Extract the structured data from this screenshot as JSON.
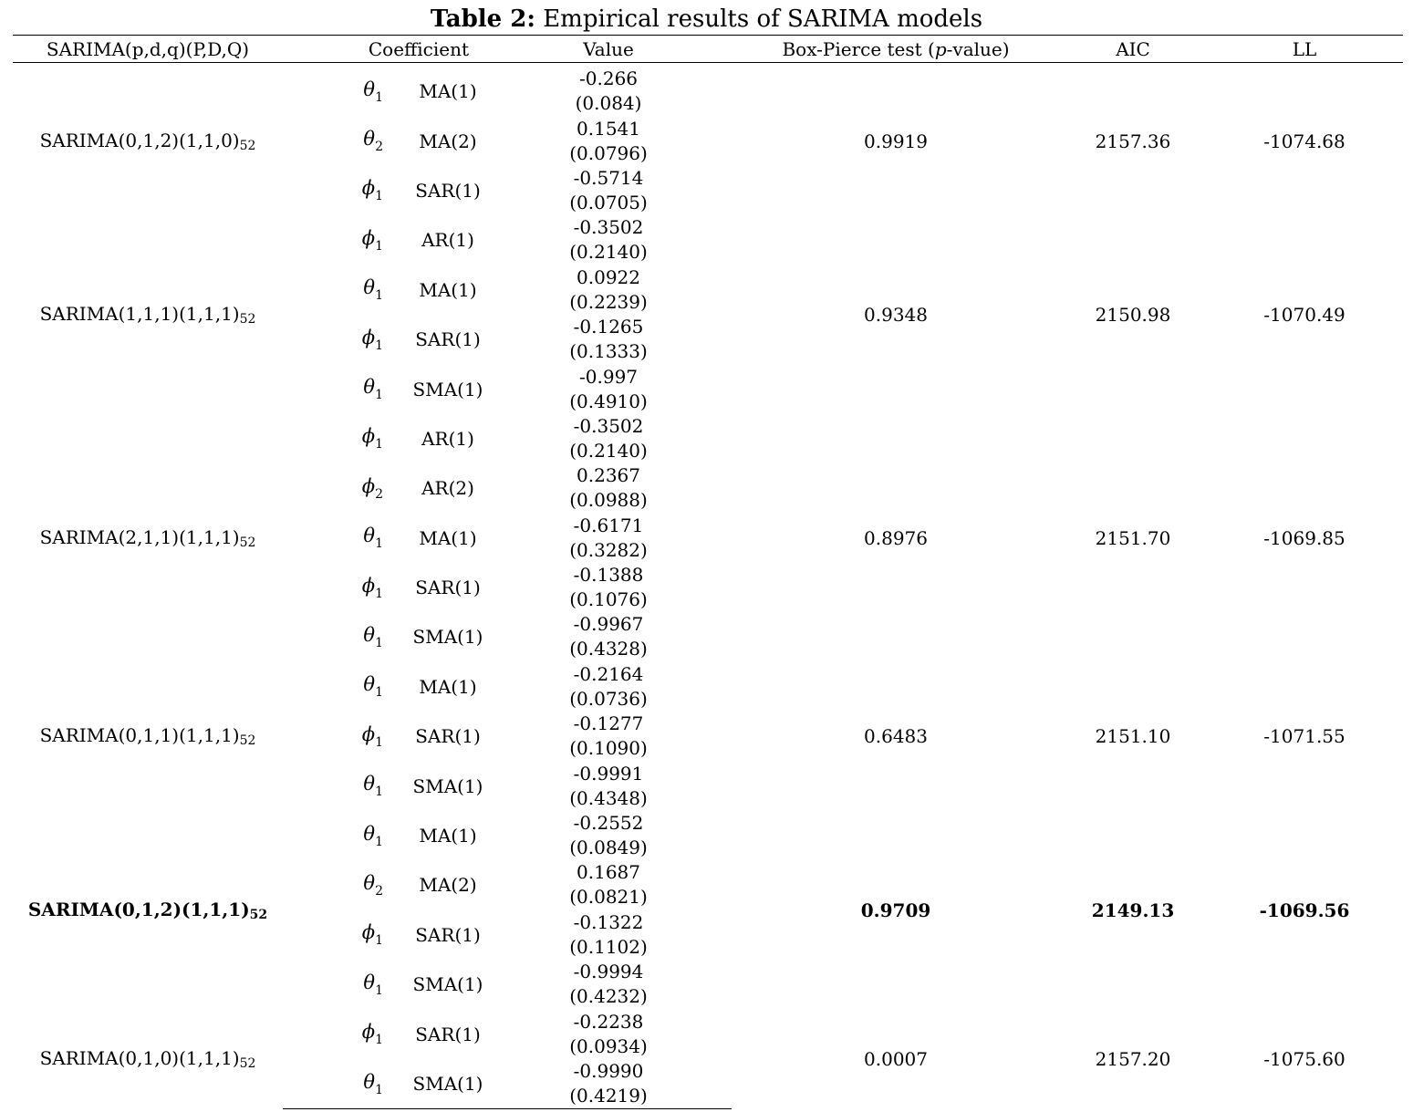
{
  "title": {
    "label": "Table 2:",
    "text": "Empirical results of SARIMA models"
  },
  "headers": {
    "model": "SARIMA(p,d,q)(P,D,Q)",
    "coefficient": "Coefficient",
    "value": "Value",
    "box_pre": "Box-Pierce test (",
    "box_p": "p",
    "box_post": "-value)",
    "aic": "AIC",
    "ll": "LL"
  },
  "models": [
    {
      "name": "SARIMA(0,1,2)(1,1,0)",
      "season": "52",
      "box_pierce": "0.9919",
      "aic": "2157.36",
      "ll": "-1074.68",
      "bold": false,
      "coefficients": [
        {
          "symbol": "θ",
          "index": "1",
          "term": "MA(1)",
          "value": "-0.266",
          "se": "(0.084)"
        },
        {
          "symbol": "θ",
          "index": "2",
          "term": "MA(2)",
          "value": "0.1541",
          "se": "(0.0796)"
        },
        {
          "symbol": "ϕ",
          "index": "1",
          "term": "SAR(1)",
          "value": "-0.5714",
          "se": "(0.0705)"
        }
      ]
    },
    {
      "name": "SARIMA(1,1,1)(1,1,1)",
      "season": "52",
      "box_pierce": "0.9348",
      "aic": "2150.98",
      "ll": "-1070.49",
      "bold": false,
      "coefficients": [
        {
          "symbol": "ϕ",
          "index": "1",
          "term": "AR(1)",
          "value": "-0.3502",
          "se": "(0.2140)"
        },
        {
          "symbol": "θ",
          "index": "1",
          "term": "MA(1)",
          "value": "0.0922",
          "se": "(0.2239)"
        },
        {
          "symbol": "ϕ",
          "index": "1",
          "term": "SAR(1)",
          "value": "-0.1265",
          "se": "(0.1333)"
        },
        {
          "symbol": "θ",
          "index": "1",
          "term": "SMA(1)",
          "value": "-0.997",
          "se": "(0.4910)"
        }
      ]
    },
    {
      "name": "SARIMA(2,1,1)(1,1,1)",
      "season": "52",
      "box_pierce": "0.8976",
      "aic": "2151.70",
      "ll": "-1069.85",
      "bold": false,
      "coefficients": [
        {
          "symbol": "ϕ",
          "index": "1",
          "term": "AR(1)",
          "value": "-0.3502",
          "se": "(0.2140)"
        },
        {
          "symbol": "ϕ",
          "index": "2",
          "term": "AR(2)",
          "value": "0.2367",
          "se": "(0.0988)"
        },
        {
          "symbol": "θ",
          "index": "1",
          "term": "MA(1)",
          "value": "-0.6171",
          "se": "(0.3282)"
        },
        {
          "symbol": "ϕ",
          "index": "1",
          "term": "SAR(1)",
          "value": "-0.1388",
          "se": "(0.1076)"
        },
        {
          "symbol": "θ",
          "index": "1",
          "term": "SMA(1)",
          "value": "-0.9967",
          "se": "(0.4328)"
        }
      ]
    },
    {
      "name": "SARIMA(0,1,1)(1,1,1)",
      "season": "52",
      "box_pierce": "0.6483",
      "aic": "2151.10",
      "ll": "-1071.55",
      "bold": false,
      "coefficients": [
        {
          "symbol": "θ",
          "index": "1",
          "term": "MA(1)",
          "value": "-0.2164",
          "se": "(0.0736)"
        },
        {
          "symbol": "ϕ",
          "index": "1",
          "term": "SAR(1)",
          "value": "-0.1277",
          "se": "(0.1090)"
        },
        {
          "symbol": "θ",
          "index": "1",
          "term": "SMA(1)",
          "value": "-0.9991",
          "se": "(0.4348)"
        }
      ]
    },
    {
      "name": "SARIMA(0,1,2)(1,1,1)",
      "season": "52",
      "box_pierce": "0.9709",
      "aic": "2149.13",
      "ll": "-1069.56",
      "bold": true,
      "coefficients": [
        {
          "symbol": "θ",
          "index": "1",
          "term": "MA(1)",
          "value": "-0.2552",
          "se": "(0.0849)"
        },
        {
          "symbol": "θ",
          "index": "2",
          "term": "MA(2)",
          "value": "0.1687",
          "se": "(0.0821)"
        },
        {
          "symbol": "ϕ",
          "index": "1",
          "term": "SAR(1)",
          "value": "-0.1322",
          "se": "(0.1102)"
        },
        {
          "symbol": "θ",
          "index": "1",
          "term": "SMA(1)",
          "value": "-0.9994",
          "se": "(0.4232)"
        }
      ]
    },
    {
      "name": "SARIMA(0,1,0)(1,1,1)",
      "season": "52",
      "box_pierce": "0.0007",
      "aic": "2157.20",
      "ll": "-1075.60",
      "bold": false,
      "coefficients": [
        {
          "symbol": "ϕ",
          "index": "1",
          "term": "SAR(1)",
          "value": "-0.2238",
          "se": "(0.0934)"
        },
        {
          "symbol": "θ",
          "index": "1",
          "term": "SMA(1)",
          "value": "-0.9990",
          "se": "(0.4219)"
        }
      ]
    }
  ]
}
